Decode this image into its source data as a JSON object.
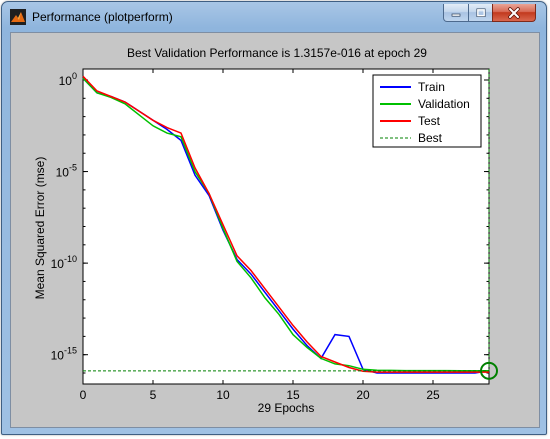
{
  "window": {
    "title": "Performance (plotperform)",
    "icon": "matlab-figure-icon"
  },
  "chart_data": {
    "type": "line",
    "title": "Best Validation Performance is 1.3157e-016 at epoch 29",
    "xlabel": "29 Epochs",
    "ylabel": "Mean Squared Error  (mse)",
    "yscale": "log",
    "xlim": [
      0,
      29
    ],
    "ylim_log10": [
      -16.6,
      0.6
    ],
    "x_ticks": [
      0,
      5,
      10,
      15,
      20,
      25
    ],
    "y_ticks": [
      {
        "exp": 0,
        "base": "10",
        "sup": "0"
      },
      {
        "exp": -5,
        "base": "10",
        "sup": "-5"
      },
      {
        "exp": -10,
        "base": "10",
        "sup": "-10"
      },
      {
        "exp": -15,
        "base": "10",
        "sup": "-15"
      }
    ],
    "legend_position": "top-right",
    "series": [
      {
        "name": "Train",
        "color": "#0000ff",
        "line": "solid",
        "x": [
          0,
          1,
          2,
          3,
          4,
          5,
          6,
          7,
          8,
          9,
          10,
          11,
          12,
          13,
          14,
          15,
          16,
          17,
          18,
          19,
          20,
          21,
          22,
          23,
          24,
          25,
          26,
          27,
          28,
          29
        ],
        "log10_y": [
          0.1,
          -0.7,
          -0.9,
          -1.2,
          -1.7,
          -2.2,
          -2.7,
          -3.3,
          -5.2,
          -6.3,
          -8.2,
          -9.8,
          -10.6,
          -11.6,
          -12.6,
          -13.6,
          -14.5,
          -15.2,
          -13.9,
          -14.0,
          -15.8,
          -16.0,
          -16.0,
          -16.0,
          -16.0,
          -16.0,
          -16.0,
          -16.0,
          -16.0,
          -15.88
        ]
      },
      {
        "name": "Validation",
        "color": "#00c000",
        "line": "solid",
        "x": [
          0,
          1,
          2,
          3,
          4,
          5,
          6,
          7,
          8,
          9,
          10,
          11,
          12,
          13,
          14,
          15,
          16,
          17,
          18,
          19,
          20,
          21,
          22,
          23,
          24,
          25,
          26,
          27,
          28,
          29
        ],
        "log10_y": [
          0.1,
          -0.7,
          -0.95,
          -1.3,
          -1.9,
          -2.5,
          -2.9,
          -3.1,
          -5.0,
          -6.2,
          -8.1,
          -9.9,
          -10.8,
          -11.9,
          -12.8,
          -13.9,
          -14.6,
          -15.2,
          -15.5,
          -15.6,
          -15.8,
          -15.85,
          -15.86,
          -15.87,
          -15.87,
          -15.87,
          -15.87,
          -15.88,
          -15.88,
          -15.88
        ]
      },
      {
        "name": "Test",
        "color": "#ff0000",
        "line": "solid",
        "x": [
          0,
          1,
          2,
          3,
          4,
          5,
          6,
          7,
          8,
          9,
          10,
          11,
          12,
          13,
          14,
          15,
          16,
          17,
          18,
          19,
          20,
          21,
          22,
          23,
          24,
          25,
          26,
          27,
          28,
          29
        ],
        "log10_y": [
          0.2,
          -0.6,
          -0.9,
          -1.2,
          -1.7,
          -2.2,
          -2.6,
          -2.9,
          -4.8,
          -6.2,
          -7.9,
          -9.6,
          -10.4,
          -11.4,
          -12.4,
          -13.4,
          -14.3,
          -15.1,
          -15.4,
          -15.7,
          -15.9,
          -15.95,
          -15.95,
          -15.95,
          -15.95,
          -15.95,
          -15.95,
          -15.95,
          -15.95,
          -15.95
        ]
      },
      {
        "name": "Best",
        "color": "#008000",
        "line": "dashed",
        "best_epoch": 29,
        "best_log10": -15.88
      }
    ]
  }
}
